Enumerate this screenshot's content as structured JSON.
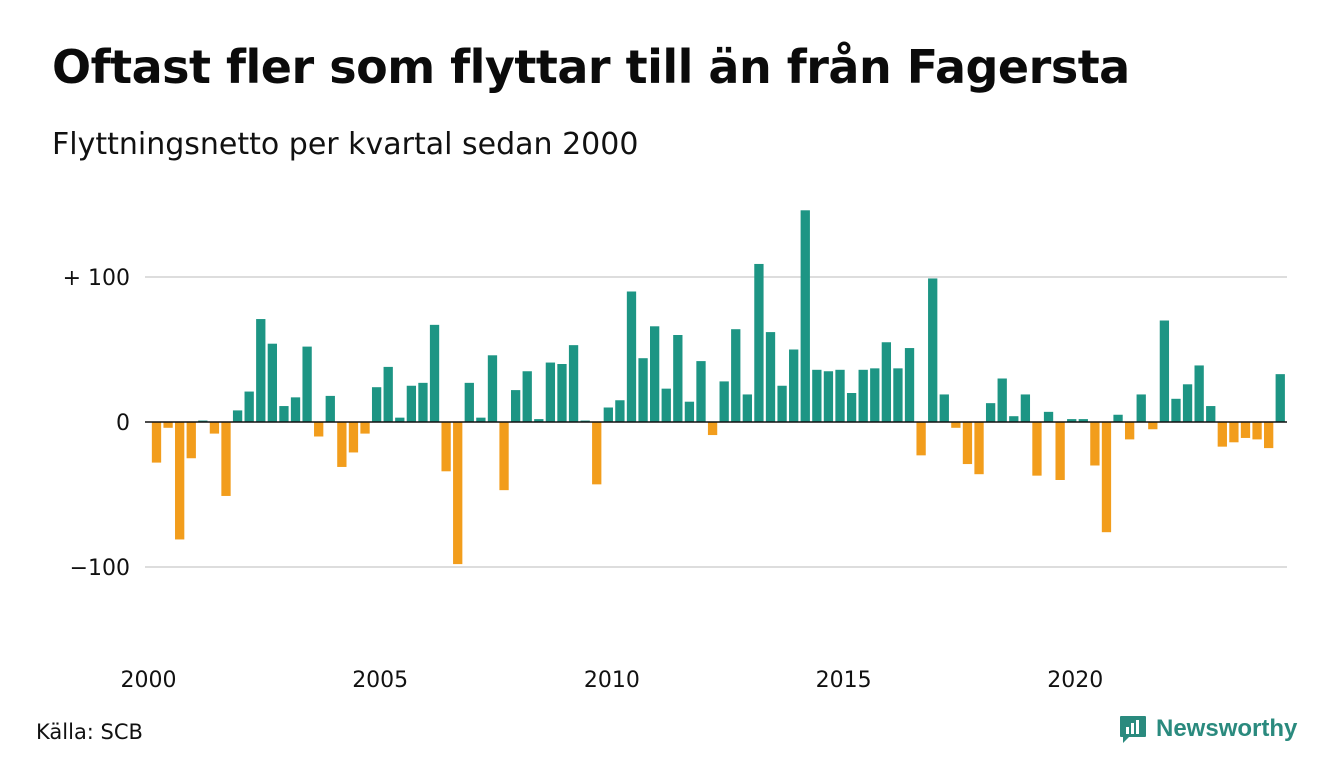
{
  "title": "Oftast fler som flyttar till än från Fagersta",
  "subtitle": "Flyttningsnetto per kvartal sedan 2000",
  "source": "Källa: SCB",
  "brand": {
    "name": "Newsworthy",
    "icon": "newsworthy-logo-icon",
    "color": "#2a8a7e"
  },
  "colors": {
    "positive": "#1d9584",
    "negative": "#f29d1c",
    "grid": "#dddddd",
    "zero": "#111111"
  },
  "chart_data": {
    "type": "bar",
    "ylim": [
      -140,
      145
    ],
    "yticks": [
      {
        "value": 100,
        "label": "+ 100"
      },
      {
        "value": 0,
        "label": "0"
      },
      {
        "value": -100,
        "label": "−100"
      }
    ],
    "xticks": [
      {
        "year": 2000,
        "label": "2000"
      },
      {
        "year": 2005,
        "label": "2005"
      },
      {
        "year": 2010,
        "label": "2010"
      },
      {
        "year": 2015,
        "label": "2015"
      },
      {
        "year": 2020,
        "label": "2020"
      }
    ],
    "start": "2000 Q1",
    "grid": true,
    "values": [
      -28,
      -4,
      -81,
      -25,
      1,
      -8,
      -51,
      8,
      21,
      71,
      54,
      11,
      17,
      52,
      -10,
      18,
      -31,
      -21,
      -8,
      24,
      38,
      3,
      25,
      27,
      67,
      -34,
      -98,
      27,
      3,
      46,
      -47,
      22,
      35,
      2,
      41,
      40,
      53,
      1,
      -43,
      10,
      15,
      90,
      44,
      66,
      23,
      60,
      14,
      42,
      -9,
      28,
      64,
      19,
      109,
      62,
      25,
      50,
      146,
      36,
      35,
      36,
      20,
      36,
      37,
      55,
      37,
      51,
      -23,
      99,
      19,
      -4,
      -29,
      -36,
      13,
      30,
      4,
      19,
      -37,
      7,
      -40,
      2,
      2,
      -30,
      -76,
      5,
      -12,
      19,
      -5,
      70,
      16,
      26,
      39,
      11,
      -17,
      -14,
      -11,
      -12,
      -18,
      33
    ]
  }
}
